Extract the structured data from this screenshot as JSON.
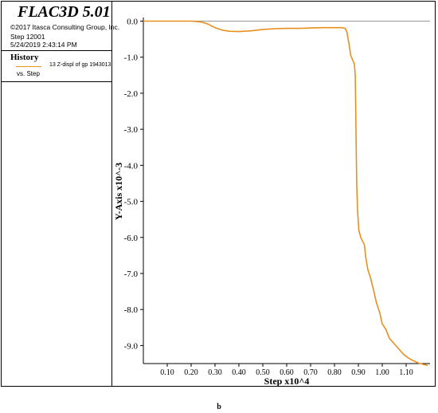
{
  "panel": {
    "app_title": "FLAC3D 5.01",
    "copyright": "©2017 Itasca Consulting Group, Inc.",
    "step": "Step 12001",
    "datetime": "5/24/2019 2:43:14 PM",
    "history_heading": "History",
    "legend_label": "13 Z-displ of gp 1943013",
    "legend_vs": "vs. Step"
  },
  "caption": "b",
  "colors": {
    "series": "#e8901e",
    "axes": "#000000",
    "zero_line": "#999999"
  },
  "chart_data": {
    "type": "line",
    "xlabel": "Step x10^4",
    "ylabel": "Y-Axis x10^-3",
    "xlim": [
      0,
      1.2
    ],
    "ylim": [
      -9.5,
      0.1
    ],
    "x_ticks": [
      {
        "value": 0.1,
        "label": "0.10"
      },
      {
        "value": 0.2,
        "label": "0.20"
      },
      {
        "value": 0.3,
        "label": "0.30"
      },
      {
        "value": 0.4,
        "label": "0.40"
      },
      {
        "value": 0.5,
        "label": "0.50"
      },
      {
        "value": 0.6,
        "label": "0.60"
      },
      {
        "value": 0.7,
        "label": "0.70"
      },
      {
        "value": 0.8,
        "label": "0.80"
      },
      {
        "value": 0.9,
        "label": "0.90"
      },
      {
        "value": 1.0,
        "label": "1.00"
      },
      {
        "value": 1.1,
        "label": "1.10"
      }
    ],
    "y_ticks": [
      {
        "value": 0,
        "label": "0.0"
      },
      {
        "value": -1,
        "label": "-1.0"
      },
      {
        "value": -2,
        "label": "-2.0"
      },
      {
        "value": -3,
        "label": "-3.0"
      },
      {
        "value": -4,
        "label": "-4.0"
      },
      {
        "value": -5,
        "label": "-5.0"
      },
      {
        "value": -6,
        "label": "-6.0"
      },
      {
        "value": -7,
        "label": "-7.0"
      },
      {
        "value": -8,
        "label": "-8.0"
      },
      {
        "value": -9,
        "label": "-9.0"
      }
    ],
    "zero_line": true,
    "series": [
      {
        "points": [
          [
            0.0,
            0.0
          ],
          [
            0.1,
            0.0
          ],
          [
            0.2,
            0.0
          ],
          [
            0.24,
            -0.02
          ],
          [
            0.27,
            -0.08
          ],
          [
            0.3,
            -0.18
          ],
          [
            0.33,
            -0.25
          ],
          [
            0.36,
            -0.28
          ],
          [
            0.4,
            -0.29
          ],
          [
            0.45,
            -0.27
          ],
          [
            0.5,
            -0.23
          ],
          [
            0.55,
            -0.21
          ],
          [
            0.6,
            -0.2
          ],
          [
            0.65,
            -0.2
          ],
          [
            0.7,
            -0.19
          ],
          [
            0.75,
            -0.18
          ],
          [
            0.8,
            -0.18
          ],
          [
            0.83,
            -0.18
          ],
          [
            0.845,
            -0.2
          ],
          [
            0.852,
            -0.3
          ],
          [
            0.86,
            -0.6
          ],
          [
            0.868,
            -0.95
          ],
          [
            0.876,
            -1.08
          ],
          [
            0.883,
            -1.18
          ],
          [
            0.887,
            -1.5
          ],
          [
            0.89,
            -3.0
          ],
          [
            0.893,
            -4.5
          ],
          [
            0.897,
            -5.3
          ],
          [
            0.902,
            -5.8
          ],
          [
            0.91,
            -6.0
          ],
          [
            0.925,
            -6.2
          ],
          [
            0.932,
            -6.6
          ],
          [
            0.94,
            -6.9
          ],
          [
            0.95,
            -7.1
          ],
          [
            0.965,
            -7.5
          ],
          [
            0.975,
            -7.8
          ],
          [
            0.99,
            -8.1
          ],
          [
            1.0,
            -8.4
          ],
          [
            1.015,
            -8.55
          ],
          [
            1.03,
            -8.8
          ],
          [
            1.05,
            -8.95
          ],
          [
            1.07,
            -9.1
          ],
          [
            1.09,
            -9.25
          ],
          [
            1.11,
            -9.35
          ],
          [
            1.13,
            -9.42
          ],
          [
            1.15,
            -9.48
          ],
          [
            1.17,
            -9.52
          ],
          [
            1.19,
            -9.55
          ]
        ]
      }
    ]
  }
}
